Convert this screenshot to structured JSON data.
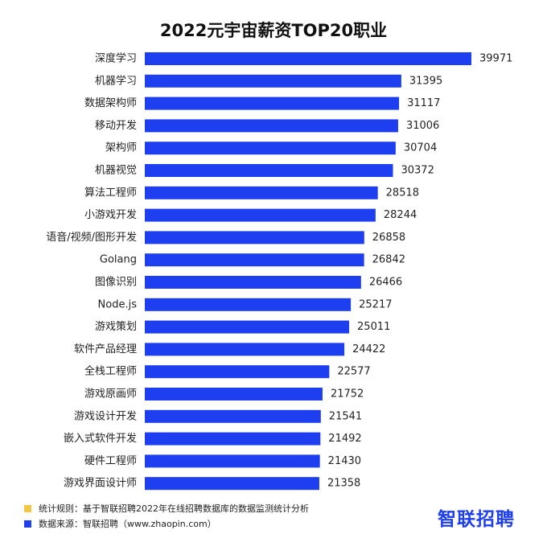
{
  "colors": {
    "bar": "#1d3ff0",
    "note_rule": "#f2c744",
    "note_source": "#1d3ff0",
    "brand": "#1d3ff0"
  },
  "chart_data": {
    "type": "bar",
    "orientation": "horizontal",
    "title": "2022元宇宙薪资TOP20职业",
    "xlabel": "",
    "ylabel": "",
    "categories": [
      "深度学习",
      "机器学习",
      "数据架构师",
      "移动开发",
      "架构师",
      "机器视觉",
      "算法工程师",
      "小游戏开发",
      "语音/视频/图形开发",
      "Golang",
      "图像识别",
      "Node.js",
      "游戏策划",
      "软件产品经理",
      "全栈工程师",
      "游戏原画师",
      "游戏设计开发",
      "嵌入式软件开发",
      "硬件工程师",
      "游戏界面设计师"
    ],
    "values": [
      39971,
      31395,
      31117,
      31006,
      30704,
      30372,
      28518,
      28244,
      26858,
      26842,
      26466,
      25217,
      25011,
      24422,
      22577,
      21752,
      21541,
      21492,
      21430,
      21358
    ],
    "xlim": [
      0,
      39971
    ],
    "grid": false,
    "legend": "none"
  },
  "footer": {
    "note_rule": "统计规则：基于智联招聘2022年在线招聘数据库的数据监测统计分析",
    "note_source": "数据来源：智联招聘（www.zhaopin.com）",
    "brand": "智联招聘"
  }
}
